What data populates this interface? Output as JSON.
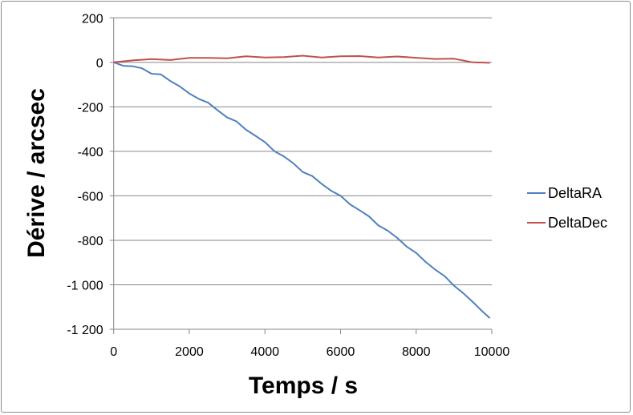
{
  "chart_data": {
    "type": "line",
    "title": "",
    "xlabel": "Temps / s",
    "ylabel": "Dérive / arcsec",
    "xlim": [
      0,
      10000
    ],
    "ylim": [
      -1200,
      200
    ],
    "xticks": [
      0,
      2000,
      4000,
      6000,
      8000,
      10000
    ],
    "xtick_labels": [
      "0",
      "2000",
      "4000",
      "6000",
      "8000",
      "10000"
    ],
    "yticks": [
      200,
      0,
      -200,
      -400,
      -600,
      -800,
      -1000,
      -1200
    ],
    "ytick_labels": [
      "200",
      "0",
      "-200",
      "-400",
      "-600",
      "-800",
      "-1 000",
      "-1 200"
    ],
    "grid": "horizontal",
    "legend_position": "right",
    "series": [
      {
        "name": "DeltaRA",
        "color": "#4f81bd",
        "x": [
          0,
          250,
          500,
          750,
          1000,
          1250,
          1500,
          1750,
          2000,
          2250,
          2500,
          2750,
          3000,
          3250,
          3500,
          3750,
          4000,
          4250,
          4500,
          4750,
          5000,
          5250,
          5500,
          5750,
          6000,
          6250,
          6500,
          6750,
          7000,
          7250,
          7500,
          7750,
          8000,
          8250,
          8500,
          8750,
          9000,
          9250,
          9500,
          9750,
          9950
        ],
        "values": [
          0,
          -12,
          -22,
          -24,
          -50,
          -58,
          -80,
          -110,
          -142,
          -160,
          -185,
          -215,
          -245,
          -270,
          -300,
          -330,
          -362,
          -395,
          -425,
          -455,
          -489,
          -515,
          -545,
          -575,
          -604,
          -635,
          -665,
          -695,
          -729,
          -760,
          -790,
          -825,
          -861,
          -895,
          -930,
          -965,
          -1000,
          -1040,
          -1080,
          -1115,
          -1150
        ]
      },
      {
        "name": "DeltaDec",
        "color": "#c0504d",
        "x": [
          0,
          500,
          1000,
          1500,
          2000,
          2500,
          3000,
          3500,
          4000,
          4500,
          5000,
          5500,
          6000,
          6500,
          7000,
          7500,
          8000,
          8500,
          9000,
          9500,
          9950
        ],
        "values": [
          0,
          8,
          12,
          15,
          17,
          20,
          22,
          23,
          24,
          25,
          26,
          26,
          26,
          26,
          26,
          23,
          21,
          18,
          12,
          3,
          -2
        ]
      }
    ]
  }
}
